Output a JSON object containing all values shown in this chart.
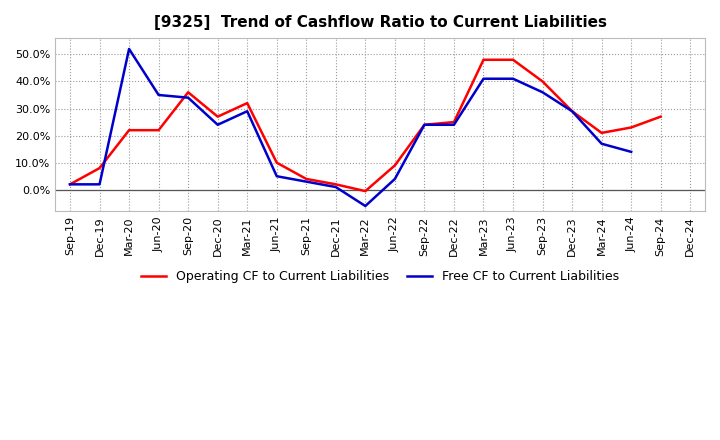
{
  "title": "[9325]  Trend of Cashflow Ratio to Current Liabilities",
  "x_labels": [
    "Sep-19",
    "Dec-19",
    "Mar-20",
    "Jun-20",
    "Sep-20",
    "Dec-20",
    "Mar-21",
    "Jun-21",
    "Sep-21",
    "Dec-21",
    "Mar-22",
    "Jun-22",
    "Sep-22",
    "Dec-22",
    "Mar-23",
    "Jun-23",
    "Sep-23",
    "Dec-23",
    "Mar-24",
    "Jun-24",
    "Sep-24",
    "Dec-24"
  ],
  "operating_cf": [
    0.02,
    0.08,
    0.22,
    0.22,
    0.36,
    0.27,
    0.32,
    0.1,
    0.04,
    0.02,
    -0.005,
    0.09,
    0.24,
    0.25,
    0.48,
    0.48,
    0.4,
    0.29,
    0.21,
    0.23,
    0.27,
    null
  ],
  "free_cf": [
    0.02,
    0.02,
    0.52,
    0.35,
    0.34,
    0.24,
    0.29,
    0.05,
    0.03,
    0.01,
    -0.06,
    0.04,
    0.24,
    0.24,
    0.41,
    0.41,
    0.36,
    0.29,
    0.17,
    0.14,
    null,
    null
  ],
  "operating_color": "#FF0000",
  "free_color": "#0000CC",
  "ylim_min": -0.08,
  "ylim_max": 0.56,
  "yticks": [
    0.0,
    0.1,
    0.2,
    0.3,
    0.4,
    0.5
  ],
  "background_color": "#FFFFFF",
  "plot_bg_color": "#FFFFFF",
  "grid_color": "#999999",
  "legend_operating": "Operating CF to Current Liabilities",
  "legend_free": "Free CF to Current Liabilities",
  "title_fontsize": 11,
  "tick_fontsize": 8,
  "line_width": 1.8
}
